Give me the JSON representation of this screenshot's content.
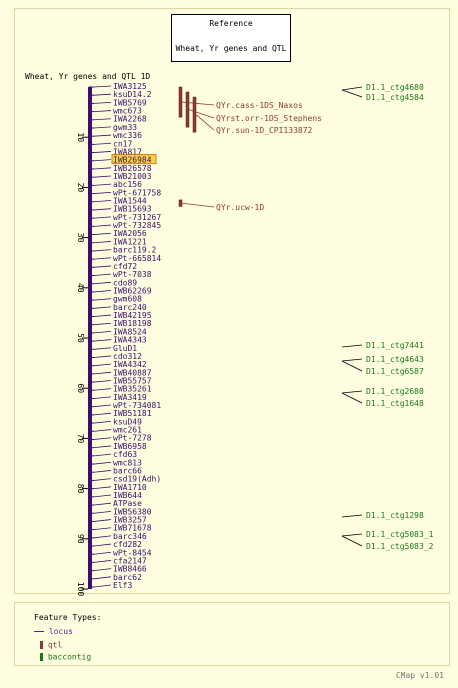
{
  "reference": {
    "label": "Reference",
    "subtitle": "Wheat, Yr genes and QTL"
  },
  "map": {
    "title": "Wheat, Yr genes and QTL 1D",
    "scale_ticks": [
      10,
      20,
      30,
      40,
      50,
      60,
      70,
      80,
      90,
      100
    ],
    "highlight_marker": "IWB26984",
    "markers": [
      "IWA3125",
      "ksuD14.2",
      "IWB5769",
      "wmc673",
      "IWA2268",
      "gwm33",
      "wmc336",
      "cn17",
      "IWA817",
      "IWB26984",
      "IWB26578",
      "IWB21003",
      "abc156",
      "wPt-671758",
      "IWA1544",
      "IWB15693",
      "wPt-731267",
      "wPt-732845",
      "IWA2056",
      "IWA1221",
      "barc119.2",
      "wPt-665814",
      "cfd72",
      "wPt-7038",
      "cdo89",
      "IWB62269",
      "gwm608",
      "barc240",
      "IWB42195",
      "IWB18198",
      "IWA8524",
      "IWA4343",
      "GluD1",
      "cdo312",
      "IWA4342",
      "IWB40887",
      "IWB55757",
      "IWB35261",
      "IWA3419",
      "wPt-734081",
      "IWB51181",
      "ksuD49",
      "wmc261",
      "wPt-7278",
      "IWB6958",
      "cfd63",
      "wmc813",
      "barc66",
      "csd19(Adh)",
      "IWA1710",
      "IWB644",
      "ATPase",
      "IWB56380",
      "IWB3257",
      "IWB71678",
      "barc346",
      "cfd282",
      "wPt-8454",
      "cfa2147",
      "IWB8466",
      "barc62",
      "Elf3"
    ],
    "qtls": [
      {
        "label": "QYr.cass-1DS_Naxos",
        "start": 0,
        "end": 6
      },
      {
        "label": "QYrst.orr-1DS_Stephens",
        "start": 1,
        "end": 8
      },
      {
        "label": "QYr.sun-1D_CPI133872",
        "start": 2,
        "end": 9
      },
      {
        "label": "QYr.ucw-1D",
        "start": 22.5,
        "end": 23.8
      }
    ],
    "contigs": [
      "D1.1_ctg4680",
      "D1.1_ctg4584",
      "D1.1_ctg7441",
      "D1.1_ctg4643",
      "D1.1_ctg6587",
      "D1.1_ctg2680",
      "D1.1_ctg1648",
      "D1.1_ctg1298",
      "D1.1_ctg5083_1",
      "D1.1_ctg5083_2"
    ]
  },
  "legend": {
    "title": "Feature Types:",
    "items": [
      {
        "label": "locus",
        "color": "#5a1e8c"
      },
      {
        "label": "qtl",
        "color": "#8b3a3a"
      },
      {
        "label": "baccontig",
        "color": "#1a7a1a"
      }
    ]
  },
  "footer": {
    "version": "CMap v1.01"
  },
  "colors": {
    "marker": "#3a0f6e",
    "qtl": "#8b3a3a",
    "contig": "#1a7a1a",
    "highlight": "#ffd24d"
  }
}
